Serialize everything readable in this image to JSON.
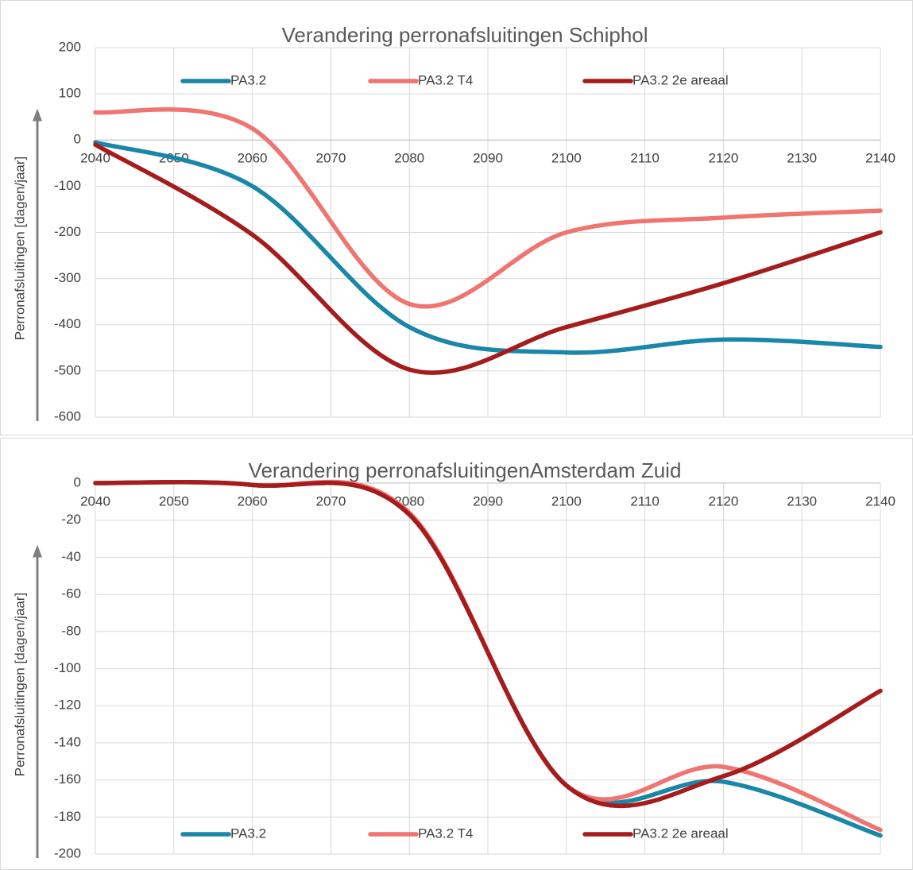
{
  "chart_data": [
    {
      "type": "line",
      "title": "Verandering perronafsluitingen Schiphol",
      "y_label": "Perronafsluitingen [dagen/jaar]",
      "x": [
        2040,
        2060,
        2080,
        2100,
        2120,
        2140
      ],
      "series": [
        {
          "name": "PA3.2",
          "color": "#1a86a8",
          "values": [
            -5,
            -100,
            -405,
            -460,
            -432,
            -448
          ]
        },
        {
          "name": "PA3.2 T4",
          "color": "#f07470",
          "values": [
            60,
            25,
            -355,
            -200,
            -168,
            -153
          ]
        },
        {
          "name": "PA3.2 2e areaal",
          "color": "#a51c1c",
          "values": [
            -10,
            -205,
            -497,
            -405,
            -310,
            -200
          ]
        }
      ],
      "xlim": [
        2040,
        2140
      ],
      "xticks": [
        2040,
        2050,
        2060,
        2070,
        2080,
        2090,
        2100,
        2110,
        2120,
        2130,
        2140
      ],
      "ylim": [
        -600,
        200
      ],
      "yticks": [
        -600,
        -500,
        -400,
        -300,
        -200,
        -100,
        0,
        100,
        200
      ],
      "grid": true,
      "legend_position": "top"
    },
    {
      "type": "line",
      "title": "Verandering perronafsluitingenAmsterdam Zuid",
      "y_label": "Perronafsluitingen [dagen/jaar]",
      "x": [
        2040,
        2060,
        2080,
        2100,
        2120,
        2140
      ],
      "series": [
        {
          "name": "PA3.2",
          "color": "#1a86a8",
          "values": [
            0,
            -1,
            -17,
            -163,
            -161,
            -190
          ]
        },
        {
          "name": "PA3.2 T4",
          "color": "#f07470",
          "values": [
            0,
            -1,
            -16,
            -163,
            -153,
            -187
          ]
        },
        {
          "name": "PA3.2 2e areaal",
          "color": "#a51c1c",
          "values": [
            0,
            -1,
            -17,
            -163,
            -158,
            -112
          ]
        }
      ],
      "xlim": [
        2040,
        2140
      ],
      "xticks": [
        2040,
        2050,
        2060,
        2070,
        2080,
        2090,
        2100,
        2110,
        2120,
        2130,
        2140
      ],
      "ylim": [
        -200,
        0
      ],
      "yticks": [
        -200,
        -180,
        -160,
        -140,
        -120,
        -100,
        -80,
        -60,
        -40,
        -20,
        0
      ],
      "grid": true,
      "legend_position": "bottom"
    }
  ]
}
